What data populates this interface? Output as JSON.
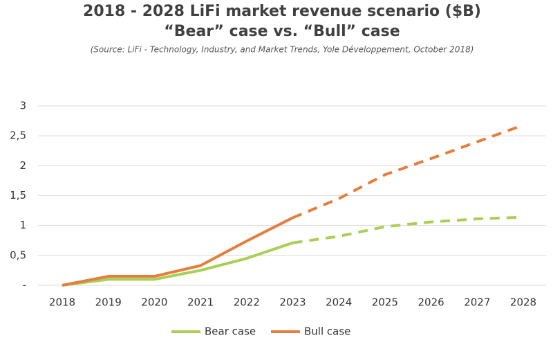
{
  "chart_data": {
    "type": "line",
    "title": "2018 - 2028 LiFi market revenue scenario ($B)",
    "subtitle": "“Bear” case vs. “Bull” case",
    "source": "(Source: LiFi - Technology, Industry, and Market Trends, Yole Développement, October 2018)",
    "categories": [
      "2018",
      "2019",
      "2020",
      "2021",
      "2022",
      "2023",
      "2024",
      "2025",
      "2026",
      "2027",
      "2028"
    ],
    "forecast_from": "2023",
    "series": [
      {
        "name": "Bear case",
        "color": "#a9cf54",
        "values": [
          0,
          0.1,
          0.1,
          0.25,
          0.45,
          0.71,
          0.82,
          0.98,
          1.06,
          1.11,
          1.14
        ]
      },
      {
        "name": "Bull case",
        "color": "#e57e3c",
        "values": [
          0,
          0.15,
          0.15,
          0.33,
          0.74,
          1.13,
          1.45,
          1.85,
          2.12,
          2.4,
          2.68
        ]
      }
    ],
    "ylim": [
      0,
      3
    ],
    "yticks": [
      {
        "value": 0,
        "label": "-"
      },
      {
        "value": 0.5,
        "label": "0,5"
      },
      1,
      {
        "value": 1.5,
        "label": "1,5"
      },
      2,
      {
        "value": 2.5,
        "label": "2,5"
      },
      3
    ],
    "grid": true
  }
}
